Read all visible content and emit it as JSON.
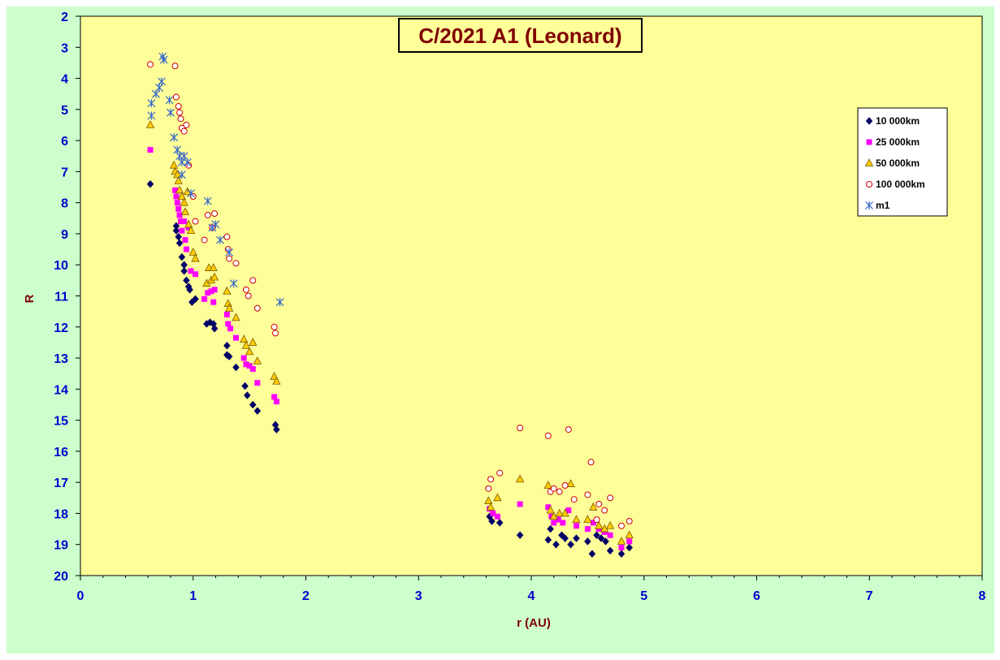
{
  "chart_data": {
    "type": "scatter",
    "title": "C/2021 A1 (Leonard)",
    "xlabel": "r (AU)",
    "ylabel": "R",
    "xlim": [
      0,
      8
    ],
    "ylim": [
      2,
      20
    ],
    "y_inverted": true,
    "x_ticks": [
      "0",
      "1",
      "2",
      "3",
      "4",
      "5",
      "6",
      "7",
      "8"
    ],
    "y_ticks": [
      "2",
      "3",
      "4",
      "5",
      "6",
      "7",
      "8",
      "9",
      "10",
      "11",
      "12",
      "13",
      "14",
      "15",
      "16",
      "17",
      "18",
      "19",
      "20"
    ],
    "grid": false,
    "legend_position": "right",
    "colors": {
      "outer_background": "#ccffcc",
      "plot_background": "#ffff99",
      "axis": "#000000",
      "tick_text": "#0000cc",
      "title_text": "#800000"
    },
    "series": [
      {
        "name": "10 000km",
        "marker": "diamond",
        "color": "#000066",
        "points": [
          [
            0.62,
            7.4
          ],
          [
            0.85,
            8.75
          ],
          [
            0.85,
            8.9
          ],
          [
            0.87,
            9.1
          ],
          [
            0.88,
            9.3
          ],
          [
            0.9,
            9.75
          ],
          [
            0.92,
            10.0
          ],
          [
            0.92,
            10.2
          ],
          [
            0.94,
            10.5
          ],
          [
            0.96,
            10.7
          ],
          [
            0.97,
            10.8
          ],
          [
            0.99,
            11.2
          ],
          [
            1.02,
            11.1
          ],
          [
            1.12,
            11.9
          ],
          [
            1.15,
            11.85
          ],
          [
            1.18,
            11.9
          ],
          [
            1.19,
            12.05
          ],
          [
            1.3,
            12.6
          ],
          [
            1.3,
            12.9
          ],
          [
            1.32,
            12.95
          ],
          [
            1.38,
            13.3
          ],
          [
            1.46,
            13.9
          ],
          [
            1.48,
            14.2
          ],
          [
            1.53,
            14.5
          ],
          [
            1.57,
            14.7
          ],
          [
            1.73,
            15.15
          ],
          [
            1.74,
            15.3
          ],
          [
            3.63,
            18.1
          ],
          [
            3.65,
            18.25
          ],
          [
            3.72,
            18.3
          ],
          [
            3.9,
            18.7
          ],
          [
            4.15,
            18.85
          ],
          [
            4.17,
            18.5
          ],
          [
            4.22,
            19.0
          ],
          [
            4.27,
            18.7
          ],
          [
            4.3,
            18.8
          ],
          [
            4.35,
            19.0
          ],
          [
            4.4,
            18.8
          ],
          [
            4.5,
            18.9
          ],
          [
            4.54,
            19.3
          ],
          [
            4.58,
            18.7
          ],
          [
            4.62,
            18.8
          ],
          [
            4.66,
            18.9
          ],
          [
            4.7,
            19.2
          ],
          [
            4.8,
            19.3
          ],
          [
            4.87,
            19.1
          ]
        ]
      },
      {
        "name": "25 000km",
        "marker": "square",
        "color": "#ff00ff",
        "points": [
          [
            0.62,
            6.3
          ],
          [
            0.84,
            7.6
          ],
          [
            0.85,
            7.8
          ],
          [
            0.86,
            8.0
          ],
          [
            0.87,
            8.2
          ],
          [
            0.88,
            8.4
          ],
          [
            0.89,
            8.6
          ],
          [
            0.9,
            8.9
          ],
          [
            0.92,
            8.6
          ],
          [
            0.93,
            9.2
          ],
          [
            0.94,
            9.5
          ],
          [
            0.96,
            8.8
          ],
          [
            0.98,
            10.2
          ],
          [
            1.02,
            10.3
          ],
          [
            1.1,
            11.1
          ],
          [
            1.13,
            10.9
          ],
          [
            1.16,
            10.85
          ],
          [
            1.18,
            11.2
          ],
          [
            1.19,
            10.8
          ],
          [
            1.3,
            11.6
          ],
          [
            1.31,
            11.9
          ],
          [
            1.33,
            12.05
          ],
          [
            1.38,
            12.35
          ],
          [
            1.45,
            13.0
          ],
          [
            1.47,
            13.2
          ],
          [
            1.5,
            13.25
          ],
          [
            1.53,
            13.35
          ],
          [
            1.57,
            13.8
          ],
          [
            1.72,
            14.25
          ],
          [
            1.74,
            14.4
          ],
          [
            3.63,
            17.85
          ],
          [
            3.66,
            18.0
          ],
          [
            3.7,
            18.1
          ],
          [
            3.9,
            17.7
          ],
          [
            4.15,
            17.8
          ],
          [
            4.18,
            18.1
          ],
          [
            4.2,
            18.3
          ],
          [
            4.24,
            18.2
          ],
          [
            4.28,
            18.3
          ],
          [
            4.33,
            17.9
          ],
          [
            4.4,
            18.4
          ],
          [
            4.5,
            18.5
          ],
          [
            4.55,
            18.3
          ],
          [
            4.6,
            18.5
          ],
          [
            4.65,
            18.6
          ],
          [
            4.7,
            18.7
          ],
          [
            4.8,
            19.1
          ],
          [
            4.87,
            18.9
          ]
        ]
      },
      {
        "name": "50 000km",
        "marker": "triangle",
        "color": "#ffcc00",
        "points": [
          [
            0.62,
            5.5
          ],
          [
            0.83,
            6.8
          ],
          [
            0.84,
            7.0
          ],
          [
            0.86,
            7.1
          ],
          [
            0.87,
            7.3
          ],
          [
            0.88,
            7.6
          ],
          [
            0.9,
            7.8
          ],
          [
            0.92,
            8.0
          ],
          [
            0.93,
            8.3
          ],
          [
            0.95,
            7.65
          ],
          [
            0.96,
            8.7
          ],
          [
            0.98,
            8.9
          ],
          [
            1.0,
            9.6
          ],
          [
            1.02,
            9.8
          ],
          [
            1.12,
            10.6
          ],
          [
            1.14,
            10.1
          ],
          [
            1.16,
            10.5
          ],
          [
            1.18,
            10.1
          ],
          [
            1.19,
            10.4
          ],
          [
            1.3,
            10.85
          ],
          [
            1.31,
            11.25
          ],
          [
            1.32,
            11.4
          ],
          [
            1.38,
            11.7
          ],
          [
            1.45,
            12.4
          ],
          [
            1.47,
            12.6
          ],
          [
            1.5,
            12.8
          ],
          [
            1.53,
            12.5
          ],
          [
            1.57,
            13.1
          ],
          [
            1.72,
            13.6
          ],
          [
            1.74,
            13.75
          ],
          [
            3.62,
            17.6
          ],
          [
            3.64,
            17.8
          ],
          [
            3.7,
            17.5
          ],
          [
            3.9,
            16.9
          ],
          [
            4.15,
            17.1
          ],
          [
            4.17,
            17.9
          ],
          [
            4.2,
            18.1
          ],
          [
            4.25,
            18.0
          ],
          [
            4.3,
            18.0
          ],
          [
            4.35,
            17.05
          ],
          [
            4.4,
            18.2
          ],
          [
            4.5,
            18.2
          ],
          [
            4.55,
            17.8
          ],
          [
            4.6,
            18.4
          ],
          [
            4.65,
            18.5
          ],
          [
            4.7,
            18.4
          ],
          [
            4.8,
            18.9
          ],
          [
            4.87,
            18.7
          ]
        ]
      },
      {
        "name": "100 000km",
        "marker": "circle",
        "color": "#cc0000",
        "points": [
          [
            0.62,
            3.55
          ],
          [
            0.84,
            3.6
          ],
          [
            0.85,
            4.6
          ],
          [
            0.87,
            4.9
          ],
          [
            0.88,
            5.1
          ],
          [
            0.89,
            5.3
          ],
          [
            0.9,
            5.6
          ],
          [
            0.92,
            5.7
          ],
          [
            0.94,
            5.5
          ],
          [
            0.96,
            6.8
          ],
          [
            1.0,
            7.8
          ],
          [
            1.02,
            8.6
          ],
          [
            1.1,
            9.2
          ],
          [
            1.13,
            8.4
          ],
          [
            1.17,
            8.8
          ],
          [
            1.19,
            8.35
          ],
          [
            1.3,
            9.1
          ],
          [
            1.31,
            9.5
          ],
          [
            1.32,
            9.8
          ],
          [
            1.38,
            9.95
          ],
          [
            1.47,
            10.8
          ],
          [
            1.49,
            11.0
          ],
          [
            1.53,
            10.5
          ],
          [
            1.57,
            11.4
          ],
          [
            1.72,
            12.0
          ],
          [
            1.73,
            12.2
          ],
          [
            3.62,
            17.2
          ],
          [
            3.64,
            16.9
          ],
          [
            3.72,
            16.7
          ],
          [
            3.9,
            15.25
          ],
          [
            4.15,
            15.5
          ],
          [
            4.17,
            17.3
          ],
          [
            4.2,
            17.2
          ],
          [
            4.25,
            17.3
          ],
          [
            4.3,
            17.1
          ],
          [
            4.33,
            15.3
          ],
          [
            4.38,
            17.55
          ],
          [
            4.5,
            17.4
          ],
          [
            4.53,
            16.35
          ],
          [
            4.58,
            18.2
          ],
          [
            4.6,
            17.7
          ],
          [
            4.65,
            17.9
          ],
          [
            4.7,
            17.5
          ],
          [
            4.8,
            18.4
          ],
          [
            4.87,
            18.25
          ]
        ]
      },
      {
        "name": "m1",
        "marker": "asterisk",
        "color": "#3366cc",
        "points": [
          [
            0.63,
            4.8
          ],
          [
            0.63,
            5.2
          ],
          [
            0.67,
            4.5
          ],
          [
            0.7,
            4.3
          ],
          [
            0.72,
            4.1
          ],
          [
            0.73,
            3.3
          ],
          [
            0.74,
            3.4
          ],
          [
            0.79,
            4.7
          ],
          [
            0.8,
            5.1
          ],
          [
            0.83,
            5.9
          ],
          [
            0.86,
            6.3
          ],
          [
            0.88,
            6.5
          ],
          [
            0.9,
            6.7
          ],
          [
            0.9,
            7.1
          ],
          [
            0.92,
            6.5
          ],
          [
            0.95,
            6.7
          ],
          [
            0.98,
            7.7
          ],
          [
            1.13,
            7.95
          ],
          [
            1.17,
            8.8
          ],
          [
            1.2,
            8.7
          ],
          [
            1.24,
            9.2
          ],
          [
            1.32,
            9.6
          ],
          [
            1.36,
            10.6
          ],
          [
            1.77,
            11.2
          ]
        ]
      }
    ]
  }
}
